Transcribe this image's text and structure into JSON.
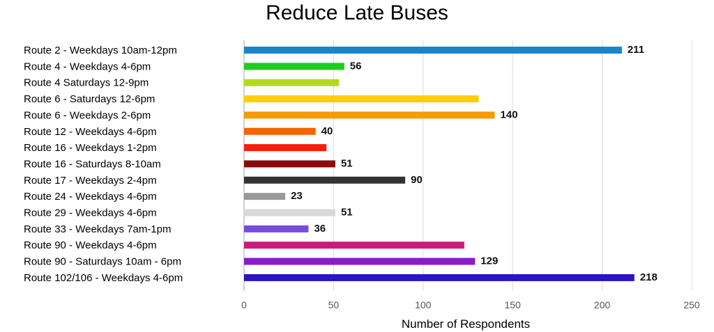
{
  "chart_data": {
    "type": "bar",
    "orientation": "horizontal",
    "title": "Reduce Late Buses",
    "xlabel": "Number of Respondents",
    "ylabel": "",
    "xlim": [
      0,
      250
    ],
    "xticks": [
      0,
      50,
      100,
      150,
      200,
      250
    ],
    "grid": true,
    "categories": [
      "Route 2 - Weekdays 10am-12pm",
      "Route 4 - Weekdays 4-6pm",
      "Route 4 Saturdays 12-9pm",
      "Route 6 - Saturdays 12-6pm",
      "Route 6 - Weekdays 2-6pm",
      "Route 12 - Weekdays 4-6pm",
      "Route 16 - Weekdays 1-2pm",
      "Route 16 - Saturdays 8-10am",
      "Route 17 - Weekdays 2-4pm",
      "Route 24 - Weekdays 4-6pm",
      "Route 29 - Weekdays 4-6pm",
      "Route 33 - Weekdays 7am-1pm",
      "Route 90 - Weekdays 4-6pm",
      "Route 90 - Saturdays 10am - 6pm",
      "Route 102/106 - Weekdays 4-6pm"
    ],
    "values": [
      211,
      56,
      53,
      131,
      140,
      40,
      46,
      51,
      90,
      23,
      51,
      36,
      123,
      129,
      218
    ],
    "data_labels": [
      "211",
      "56",
      "",
      "",
      "140",
      "40",
      "",
      "51",
      "90",
      "23",
      "51",
      "36",
      "",
      "129",
      "218"
    ],
    "colors": [
      "#1a86c8",
      "#1ecc1e",
      "#b3d91a",
      "#ffcf00",
      "#f59a00",
      "#f56400",
      "#ff1a0a",
      "#8b0a0a",
      "#333333",
      "#999999",
      "#d9d9d9",
      "#7a4ae0",
      "#cc1a7a",
      "#8a1ad0",
      "#2a14c8"
    ]
  }
}
